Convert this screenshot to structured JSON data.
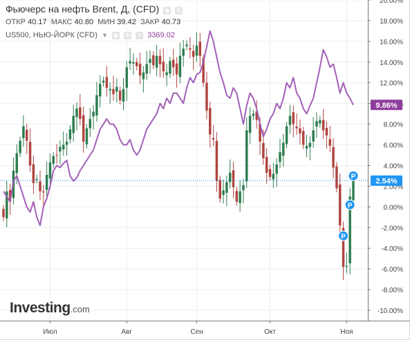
{
  "legend": {
    "title": "Фьючерс на нефть Brent, Д, (CFD)",
    "open_label": "ОТКР",
    "open_value": "40.17",
    "high_label": "МАКС",
    "high_value": "40.80",
    "low_label": "МИН",
    "low_value": "39.42",
    "close_label": "ЗАКР",
    "close_value": "40.73",
    "overlay_name": "US500, НЬЮ-ЙОРК (CFD)",
    "overlay_value": "3369.02"
  },
  "logo": {
    "brand": "Investing",
    "suffix": ".com"
  },
  "colors": {
    "up": "#2e7d4f",
    "down": "#b0443f",
    "sp500": "#a25fb8",
    "price_badge": "#2196f3",
    "sp_badge": "#8e3e9b",
    "marker": "#2196f3",
    "grid": "#eeeeee"
  },
  "chart_data": {
    "type": "line",
    "y_unit": "%",
    "ylim": [
      -11,
      20
    ],
    "y_ticks": [
      20,
      18,
      16,
      14,
      12,
      10,
      8,
      6,
      4,
      2,
      0,
      -2,
      -4,
      -6,
      -8,
      -10
    ],
    "y_tick_labels": [
      "20.00%",
      "18.00%",
      "16.00%",
      "14.00%",
      "12.00%",
      "10.00%",
      "8.00%",
      "6.00%",
      "4.00%",
      "2.00%",
      "0.00%",
      "-2.00%",
      "-4.00%",
      "-6.00%",
      "-8.00%",
      "-10.00%"
    ],
    "x_ticks": [
      {
        "label": "Июл",
        "index": 14
      },
      {
        "label": "Авг",
        "index": 37
      },
      {
        "label": "Сен",
        "index": 58
      },
      {
        "label": "Окт",
        "index": 80
      },
      {
        "label": "Ноя",
        "index": 103
      }
    ],
    "n": 106,
    "grid": true,
    "current_value_label": "2.54%",
    "sp500_current_label": "9.86%",
    "brent_series_name": "Фьючерс на нефть Brent, Д, (CFD)",
    "sp500_series_name": "US500, НЬЮ-ЙОРК (CFD)",
    "brent_close": [
      -1.0,
      1.5,
      0.5,
      3.5,
      5.2,
      6.4,
      7.8,
      6.4,
      4.0,
      2.3,
      2.7,
      1.5,
      1.4,
      3.1,
      4.3,
      4.9,
      5.0,
      5.8,
      6.0,
      6.3,
      7.5,
      8.8,
      9.5,
      8.5,
      6.3,
      7.6,
      8.5,
      9.2,
      10.8,
      11.9,
      12.2,
      11.5,
      11.4,
      10.9,
      11.6,
      10.3,
      11.4,
      13.5,
      14.1,
      14.0,
      13.6,
      12.7,
      13.0,
      13.8,
      14.3,
      13.7,
      14.6,
      13.8,
      13.1,
      13.0,
      14.1,
      13.5,
      12.8,
      14.6,
      15.3,
      15.7,
      15.2,
      14.5,
      15.6,
      14.6,
      12.0,
      9.3,
      7.0,
      6.5,
      2.5,
      0.8,
      1.6,
      2.4,
      3.3,
      1.9,
      0.5,
      1.5,
      2.1,
      7.4,
      8.8,
      9.0,
      8.4,
      6.3,
      4.7,
      3.3,
      2.9,
      3.2,
      4.1,
      5.3,
      6.2,
      7.8,
      8.8,
      8.0,
      7.6,
      7.1,
      6.0,
      5.9,
      6.2,
      7.4,
      8.3,
      8.4,
      7.4,
      6.9,
      5.9,
      3.8,
      1.8,
      -1.8,
      -5.8,
      -5.7,
      1.0,
      2.54
    ],
    "sp500": [
      1.5,
      1.0,
      0.5,
      2.5,
      3.0,
      2.0,
      1.0,
      0.0,
      -0.5,
      0.5,
      -1.0,
      -1.8,
      0.0,
      0.8,
      2.0,
      3.5,
      4.0,
      3.8,
      4.2,
      4.5,
      3.0,
      2.5,
      2.8,
      3.5,
      4.0,
      4.5,
      5.0,
      5.5,
      6.5,
      7.5,
      8.0,
      8.5,
      8.0,
      8.0,
      7.5,
      6.5,
      6.0,
      6.0,
      6.5,
      5.5,
      5.0,
      5.5,
      6.5,
      7.5,
      8.0,
      8.5,
      9.0,
      10.0,
      9.5,
      10.5,
      10.0,
      11.0,
      11.0,
      10.5,
      10.0,
      11.5,
      12.5,
      12.0,
      12.8,
      13.0,
      14.0,
      15.5,
      17.0,
      16.0,
      14.5,
      13.0,
      12.0,
      10.8,
      10.5,
      11.5,
      11.0,
      9.5,
      8.0,
      9.8,
      11.0,
      10.5,
      9.5,
      8.0,
      6.8,
      7.5,
      8.5,
      9.0,
      10.0,
      9.5,
      10.5,
      12.0,
      11.5,
      12.5,
      11.0,
      10.5,
      9.5,
      9.0,
      9.8,
      10.5,
      12.0,
      13.5,
      15.2,
      14.5,
      13.5,
      13.8,
      12.5,
      11.0,
      12.0,
      11.0,
      10.5,
      9.86
    ],
    "markers": [
      {
        "index": 105,
        "value": 3.0,
        "label": "P"
      },
      {
        "index": 104,
        "value": 0.2,
        "label": "P"
      },
      {
        "index": 102,
        "value": -2.8,
        "label": "P"
      }
    ]
  }
}
